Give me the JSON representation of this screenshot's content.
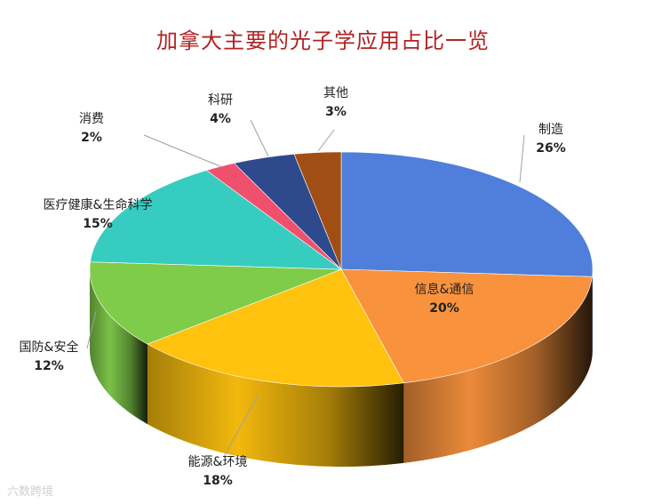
{
  "chart_data": {
    "type": "pie",
    "title": "加拿大主要的光子学应用占比一览",
    "slices": [
      {
        "name": "制造",
        "value": 26,
        "pct_label": "26%",
        "color": "#4f7fdb"
      },
      {
        "name": "信息&通信",
        "value": 20,
        "pct_label": "20%",
        "color": "#f8923d"
      },
      {
        "name": "能源&环境",
        "value": 18,
        "pct_label": "18%",
        "color": "#ffc20e"
      },
      {
        "name": "国防&安全",
        "value": 12,
        "pct_label": "12%",
        "color": "#7fcb4a"
      },
      {
        "name": "医疗健康&生命科学",
        "value": 15,
        "pct_label": "15%",
        "color": "#36cdc0"
      },
      {
        "name": "消费",
        "value": 2,
        "pct_label": "2%",
        "color": "#f0506e"
      },
      {
        "name": "科研",
        "value": 4,
        "pct_label": "4%",
        "color": "#2e4a8c"
      },
      {
        "name": "其他",
        "value": 3,
        "pct_label": "3%",
        "color": "#a04e14"
      }
    ],
    "legend": "none"
  },
  "watermark": "六数跨境"
}
